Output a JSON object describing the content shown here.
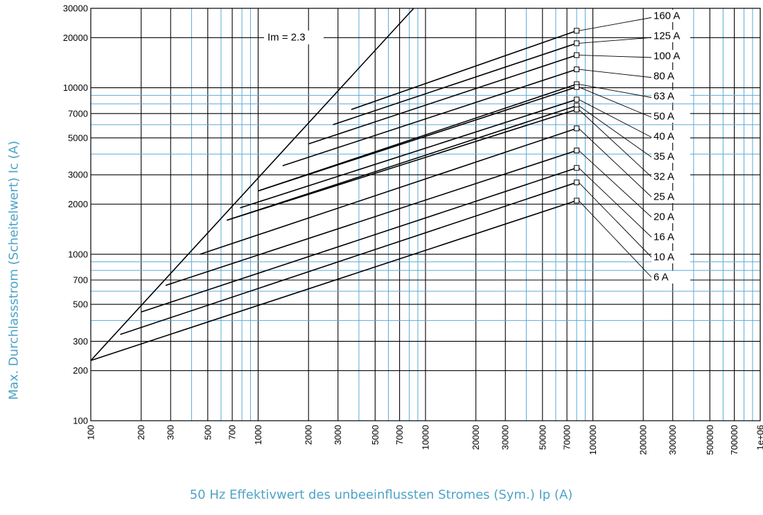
{
  "chart_data": {
    "type": "line",
    "title": "",
    "xlabel": "50 Hz Effektivwert des unbeeinflussten Stromes (Sym.) Ip (A)",
    "ylabel": "Max. Durchlassstrom (Scheitelwert) Ic (A)",
    "x_scale": "log",
    "y_scale": "log",
    "xlim": [
      100,
      1000000
    ],
    "ylim": [
      100,
      30000
    ],
    "grid": true,
    "x_ticks": [
      {
        "value": 100,
        "label": "100"
      },
      {
        "value": 200,
        "label": "200"
      },
      {
        "value": 300,
        "label": "300"
      },
      {
        "value": 500,
        "label": "500"
      },
      {
        "value": 700,
        "label": "700"
      },
      {
        "value": 1000,
        "label": "1000"
      },
      {
        "value": 2000,
        "label": "2000"
      },
      {
        "value": 3000,
        "label": "3000"
      },
      {
        "value": 5000,
        "label": "5000"
      },
      {
        "value": 7000,
        "label": "7000"
      },
      {
        "value": 10000,
        "label": "10000"
      },
      {
        "value": 20000,
        "label": "20000"
      },
      {
        "value": 30000,
        "label": "30000"
      },
      {
        "value": 50000,
        "label": "50000"
      },
      {
        "value": 70000,
        "label": "70000"
      },
      {
        "value": 100000,
        "label": "100000"
      },
      {
        "value": 200000,
        "label": "200000"
      },
      {
        "value": 300000,
        "label": "300000"
      },
      {
        "value": 500000,
        "label": "500000"
      },
      {
        "value": 700000,
        "label": "700000"
      },
      {
        "value": 1000000,
        "label": "1e+06"
      }
    ],
    "y_ticks": [
      {
        "value": 100,
        "label": "100"
      },
      {
        "value": 200,
        "label": "200"
      },
      {
        "value": 300,
        "label": "300"
      },
      {
        "value": 500,
        "label": "500"
      },
      {
        "value": 700,
        "label": "700"
      },
      {
        "value": 1000,
        "label": "1000"
      },
      {
        "value": 2000,
        "label": "2000"
      },
      {
        "value": 3000,
        "label": "3000"
      },
      {
        "value": 5000,
        "label": "5000"
      },
      {
        "value": 7000,
        "label": "7000"
      },
      {
        "value": 10000,
        "label": "10000"
      },
      {
        "value": 20000,
        "label": "20000"
      },
      {
        "value": 30000,
        "label": "30000"
      }
    ],
    "reference_line": {
      "label": "Im = 2.3",
      "x": [
        100,
        8500
      ],
      "y": [
        230,
        30000
      ]
    },
    "series": [
      {
        "name": "160 A",
        "x": [
          3600,
          80000
        ],
        "y": [
          7400,
          22000
        ]
      },
      {
        "name": "125 A",
        "x": [
          2800,
          80000
        ],
        "y": [
          6000,
          18500
        ]
      },
      {
        "name": "100 A",
        "x": [
          2000,
          80000
        ],
        "y": [
          4600,
          15700
        ]
      },
      {
        "name": "80 A",
        "x": [
          1400,
          80000
        ],
        "y": [
          3400,
          12900
        ]
      },
      {
        "name": "63 A",
        "x": [
          1000,
          80000
        ],
        "y": [
          2400,
          10500
        ]
      },
      {
        "name": "50 A",
        "x": [
          1000,
          80000
        ],
        "y": [
          2400,
          10100
        ]
      },
      {
        "name": "40 A",
        "x": [
          780,
          80000
        ],
        "y": [
          1900,
          8500
        ]
      },
      {
        "name": "35 A",
        "x": [
          650,
          80000
        ],
        "y": [
          1600,
          7800
        ]
      },
      {
        "name": "32 A",
        "x": [
          650,
          80000
        ],
        "y": [
          1600,
          7400
        ]
      },
      {
        "name": "25 A",
        "x": [
          450,
          80000
        ],
        "y": [
          1000,
          5700
        ]
      },
      {
        "name": "20 A",
        "x": [
          280,
          80000
        ],
        "y": [
          650,
          4200
        ]
      },
      {
        "name": "16 A",
        "x": [
          200,
          80000
        ],
        "y": [
          450,
          3300
        ]
      },
      {
        "name": "10 A",
        "x": [
          150,
          80000
        ],
        "y": [
          330,
          2700
        ]
      },
      {
        "name": "6 A",
        "x": [
          100,
          80000
        ],
        "y": [
          230,
          2100
        ]
      }
    ],
    "colors": {
      "curves": "#000000",
      "grid_minor": "#5aa9d6",
      "grid_major": "#000000",
      "axis_title": "#4fa3c7"
    }
  }
}
